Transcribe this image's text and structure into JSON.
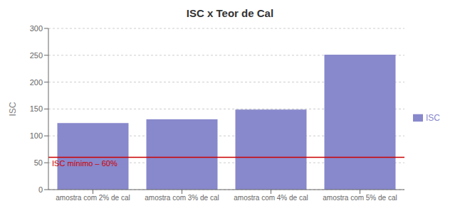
{
  "chart_data": {
    "type": "bar",
    "title": "ISC x Teor de Cal",
    "categories": [
      "amostra com 2% de cal",
      "amostra com 3% de cal",
      "amostra com 4% de cal",
      "amostra com 5% de cal"
    ],
    "series": [
      {
        "name": "ISC",
        "color": "#8888CC",
        "values": [
          124,
          131,
          149,
          251
        ]
      }
    ],
    "ylabel": "ISC",
    "ylim": [
      0,
      300
    ],
    "yticks": [
      0,
      50,
      100,
      150,
      200,
      250,
      300
    ],
    "grid": true,
    "legend": "right",
    "reference_line": {
      "y": 60,
      "label": "ISC mínimo – 60%",
      "color": "#CC0000"
    }
  }
}
